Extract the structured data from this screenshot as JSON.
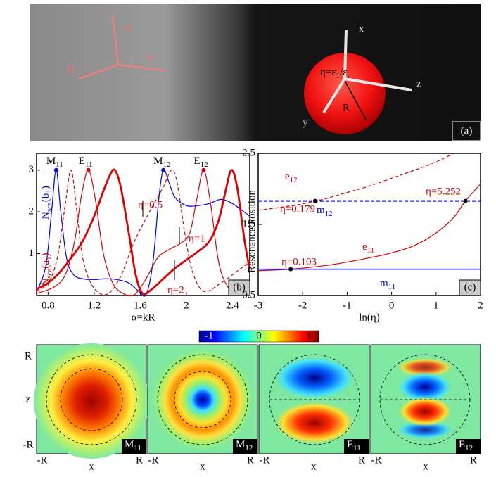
{
  "panel_a": {
    "left_axes": [
      "E",
      "H",
      "k"
    ],
    "right_axes": [
      "x",
      "y",
      "z"
    ],
    "eta": [
      "η=ε",
      "1",
      "/ε",
      "r"
    ],
    "radius": "R",
    "label": "(a)"
  },
  "chart_data": [
    {
      "type": "line",
      "panel": "(b)",
      "xlabel": "α=kR",
      "ylabels": [
        {
          "text": [
            "N",
            "sca",
            "(b",
            "1",
            ")"
          ],
          "color": "#0000ff"
        },
        {
          "text": [
            "N",
            "sca",
            "(a",
            "1",
            ")"
          ],
          "color": "#e00000"
        }
      ],
      "xlim": [
        0.7,
        2.55
      ],
      "ylim": [
        0,
        3.4
      ],
      "xticks": [
        0.8,
        1.2,
        1.6,
        2,
        2.4
      ],
      "yticks": [
        1,
        2,
        3
      ],
      "series": [
        {
          "color": "#0000ff",
          "width": 1.2,
          "dash": false,
          "x": [
            0.7,
            0.78,
            0.83,
            0.87,
            0.91,
            0.96,
            1.02,
            1.1,
            1.2,
            1.3,
            1.4,
            1.5,
            1.58,
            1.65,
            1.71,
            1.76,
            1.8,
            1.85,
            1.9,
            2.0,
            2.1,
            2.2,
            2.3,
            2.4,
            2.5,
            2.55
          ],
          "values": [
            0.1,
            0.7,
            2.0,
            3.0,
            2.0,
            0.9,
            0.5,
            0.4,
            0.38,
            0.4,
            0.38,
            0.3,
            0.12,
            0.02,
            0.8,
            2.3,
            3.0,
            2.7,
            2.35,
            2.15,
            2.15,
            2.2,
            2.3,
            2.2,
            2.0,
            1.9
          ]
        },
        {
          "name": "η=1",
          "color": "#e00000",
          "width": 1.2,
          "dash": false,
          "x": [
            0.7,
            0.85,
            0.95,
            1.03,
            1.09,
            1.15,
            1.21,
            1.28,
            1.36,
            1.45,
            1.55,
            1.65,
            1.75,
            1.85,
            1.95,
            2.03,
            2.09,
            2.15,
            2.21,
            2.28,
            2.36,
            2.45,
            2.55
          ],
          "values": [
            0.05,
            0.2,
            0.5,
            1.3,
            2.4,
            3.0,
            2.3,
            1.0,
            0.3,
            0.05,
            0.02,
            0.4,
            0.9,
            1.1,
            1.25,
            1.5,
            2.3,
            3.0,
            2.2,
            0.8,
            0.2,
            0.05,
            0.03
          ]
        },
        {
          "name": "η=0.5",
          "color": "#e00000",
          "width": 1.2,
          "dash": true,
          "x": [
            0.7,
            0.8,
            0.88,
            0.95,
            1.0,
            1.05,
            1.1,
            1.18,
            1.3,
            1.42,
            1.55,
            1.68,
            1.8,
            1.87,
            1.92,
            1.98,
            2.05,
            2.15,
            2.3,
            2.45,
            2.55
          ],
          "values": [
            0.1,
            0.3,
            0.9,
            2.2,
            3.0,
            2.0,
            0.9,
            0.25,
            0.02,
            0.4,
            1.3,
            2.0,
            2.6,
            3.0,
            2.7,
            1.6,
            0.6,
            0.1,
            0.3,
            0.6,
            0.8
          ]
        },
        {
          "name": "η=2",
          "color": "#e00000",
          "width": 2.8,
          "dash": false,
          "x": [
            0.7,
            0.8,
            0.9,
            1.0,
            1.1,
            1.2,
            1.28,
            1.34,
            1.38,
            1.43,
            1.5,
            1.56,
            1.62,
            1.7,
            1.8,
            1.9,
            2.0,
            2.1,
            2.2,
            2.28,
            2.34,
            2.39,
            2.44,
            2.5,
            2.55
          ],
          "values": [
            0.15,
            0.3,
            0.55,
            0.9,
            1.3,
            1.9,
            2.5,
            2.9,
            3.0,
            2.6,
            1.5,
            0.5,
            0.05,
            0.15,
            0.4,
            0.65,
            0.85,
            1.05,
            1.3,
            1.8,
            2.5,
            3.0,
            2.6,
            1.4,
            0.6
          ]
        }
      ],
      "peaks": {
        "x": [
          0.87,
          1.15,
          1.8,
          2.15
        ],
        "values": [
          3,
          3,
          3,
          3
        ],
        "labels": [
          [
            "M",
            "11"
          ],
          [
            "E",
            "11"
          ],
          [
            "M",
            "12"
          ],
          [
            "E",
            "12"
          ]
        ],
        "colors": [
          "#0000ff",
          "#e00000",
          "#0000ff",
          "#e00000"
        ]
      }
    },
    {
      "type": "line",
      "panel": "(c)",
      "xlabel": "ln(η)",
      "ylabel": "Resonance Position",
      "xlim": [
        -3,
        2
      ],
      "ylim": [
        0.5,
        2.5
      ],
      "xticks": [
        -3,
        -2,
        -1,
        0,
        1,
        2
      ],
      "yticks": [
        0.5,
        1.5,
        2.5
      ],
      "series": [
        {
          "label": [
            "e",
            "12"
          ],
          "color": "#e00000",
          "width": 1.2,
          "dash": true,
          "x": [
            -3,
            -2.5,
            -2,
            -1.72,
            -1.5,
            -1,
            -0.5,
            0,
            0.5,
            1,
            1.4
          ],
          "values": [
            1.7,
            1.74,
            1.79,
            1.83,
            1.86,
            1.95,
            2.04,
            2.15,
            2.26,
            2.38,
            2.5
          ]
        },
        {
          "label": [
            "m",
            "12"
          ],
          "color": "#0000ff",
          "width": 2,
          "dash": true,
          "x": [
            -3,
            2
          ],
          "values": [
            1.83,
            1.83
          ]
        },
        {
          "label": [
            "e",
            "11"
          ],
          "color": "#e00000",
          "width": 1.2,
          "dash": false,
          "x": [
            -3,
            -2.27,
            -1.5,
            -1,
            -0.5,
            0,
            0.5,
            1,
            1.4,
            1.66,
            2
          ],
          "values": [
            0.85,
            0.87,
            0.92,
            0.97,
            1.03,
            1.1,
            1.2,
            1.38,
            1.6,
            1.83,
            2.07
          ]
        },
        {
          "label": [
            "m",
            "11"
          ],
          "color": "#0000ff",
          "width": 1.5,
          "dash": false,
          "x": [
            -3,
            2
          ],
          "values": [
            0.87,
            0.87
          ]
        }
      ],
      "points": {
        "x": [
          -2.27,
          -1.72,
          1.66
        ],
        "values": [
          0.87,
          1.83,
          1.83
        ],
        "labels": [
          "η=0.103",
          "η=0.179",
          "η=5.252"
        ]
      }
    }
  ],
  "panel_d": {
    "colorbar": {
      "clim": [
        -1.2,
        1.2
      ],
      "ticks": [
        -1,
        0,
        1
      ]
    },
    "maps": [
      {
        "label": [
          "M",
          "11"
        ]
      },
      {
        "label": [
          "M",
          "12"
        ]
      },
      {
        "label": [
          "E",
          "11"
        ]
      },
      {
        "label": [
          "E",
          "12"
        ]
      }
    ],
    "ylabels": [
      "R",
      "z",
      "-R"
    ],
    "xlabels": [
      "-R",
      "x",
      "R"
    ]
  }
}
